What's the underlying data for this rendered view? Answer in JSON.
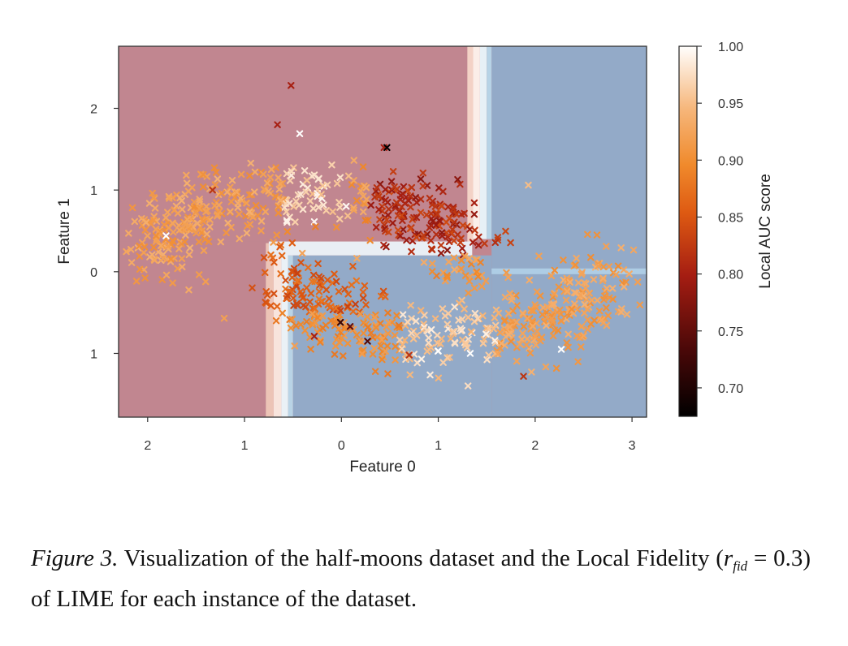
{
  "chart_data": {
    "type": "scatter",
    "title": "",
    "xlabel": "Feature 0",
    "ylabel": "Feature 1",
    "xlim": [
      -2.3,
      3.15
    ],
    "ylim": [
      -1.78,
      2.76
    ],
    "x_ticks": [
      -2,
      -1,
      0,
      1,
      2,
      3
    ],
    "x_tick_labels": [
      "2",
      "1",
      "0",
      "1",
      "2",
      "3"
    ],
    "y_ticks": [
      -1,
      0,
      1,
      2
    ],
    "y_tick_labels": [
      "1",
      "0",
      "1",
      "2"
    ],
    "grid": false,
    "background_regions": [
      {
        "name": "class 0 region",
        "color": "#c18690",
        "x_range": [
          -2.3,
          1.35
        ],
        "y_range": [
          0.37,
          2.76
        ]
      },
      {
        "name": "class 0 region",
        "color": "#c18690",
        "x_range": [
          -2.3,
          -0.75
        ],
        "y_range": [
          -1.78,
          0.37
        ]
      },
      {
        "name": "class 1 region",
        "color": "#93aac8",
        "x_range": [
          1.55,
          3.15
        ],
        "y_range": [
          -1.78,
          2.76
        ]
      },
      {
        "name": "class 1 region",
        "color": "#93aac8",
        "x_range": [
          -0.5,
          1.55
        ],
        "y_range": [
          -1.78,
          0.2
        ]
      }
    ],
    "colorbar": {
      "label": "Local AUC score",
      "min": 0.675,
      "max": 1.0,
      "ticks": [
        0.7,
        0.75,
        0.8,
        0.85,
        0.9,
        0.95,
        1.0
      ],
      "tick_labels": [
        "0.70",
        "0.75",
        "0.80",
        "0.85",
        "0.90",
        "0.95",
        "1.00"
      ],
      "colormap": "Oranges-to-black (gist_heat like)"
    },
    "marker": "x",
    "points": [
      {
        "x": -0.52,
        "y": 2.28,
        "v": 0.8
      },
      {
        "x": -0.66,
        "y": 1.8,
        "v": 0.8
      },
      {
        "x": -0.43,
        "y": 1.69,
        "v": 1.0
      },
      {
        "x": -1.33,
        "y": 1.0,
        "v": 0.82
      },
      {
        "x": -1.81,
        "y": 0.44,
        "v": 1.0
      },
      {
        "x": -1.21,
        "y": -0.57,
        "v": 0.92
      },
      {
        "x": 0.44,
        "y": 1.52,
        "v": 0.8
      },
      {
        "x": 0.47,
        "y": 1.52,
        "v": 0.68
      },
      {
        "x": -0.01,
        "y": -0.62,
        "v": 0.72
      },
      {
        "x": 0.09,
        "y": -0.67,
        "v": 0.75
      },
      {
        "x": -0.28,
        "y": -0.79,
        "v": 0.8
      },
      {
        "x": 0.27,
        "y": -0.85,
        "v": 0.74
      },
      {
        "x": 0.7,
        "y": -1.02,
        "v": 0.82
      },
      {
        "x": 1.88,
        "y": -1.28,
        "v": 0.82
      },
      {
        "x": 1.0,
        "y": -0.97,
        "v": 1.0
      },
      {
        "x": 1.33,
        "y": -1.0,
        "v": 1.0
      },
      {
        "x": 2.27,
        "y": -0.95,
        "v": 1.0
      },
      {
        "x": 2.65,
        "y": 0.07,
        "v": 0.92
      },
      {
        "x": 1.93,
        "y": 1.06,
        "v": 0.95
      },
      {
        "x": 2.51,
        "y": -0.4,
        "v": 0.94
      }
    ],
    "generated_cloud": {
      "description": "about 1000 half-moons samples; upper moon spans x -1.8..1.3, lower moon spans x -0.5..2.6",
      "noise": 0.22
    }
  },
  "caption": {
    "label": "Figure 3.",
    "text_before": "Visualization of the half-moons dataset and the Local Fidelity (",
    "math_r": "r",
    "math_sub": "fid",
    "math_rest": " = 0.3",
    "text_after": ") of LIME for each instance of the dataset."
  }
}
